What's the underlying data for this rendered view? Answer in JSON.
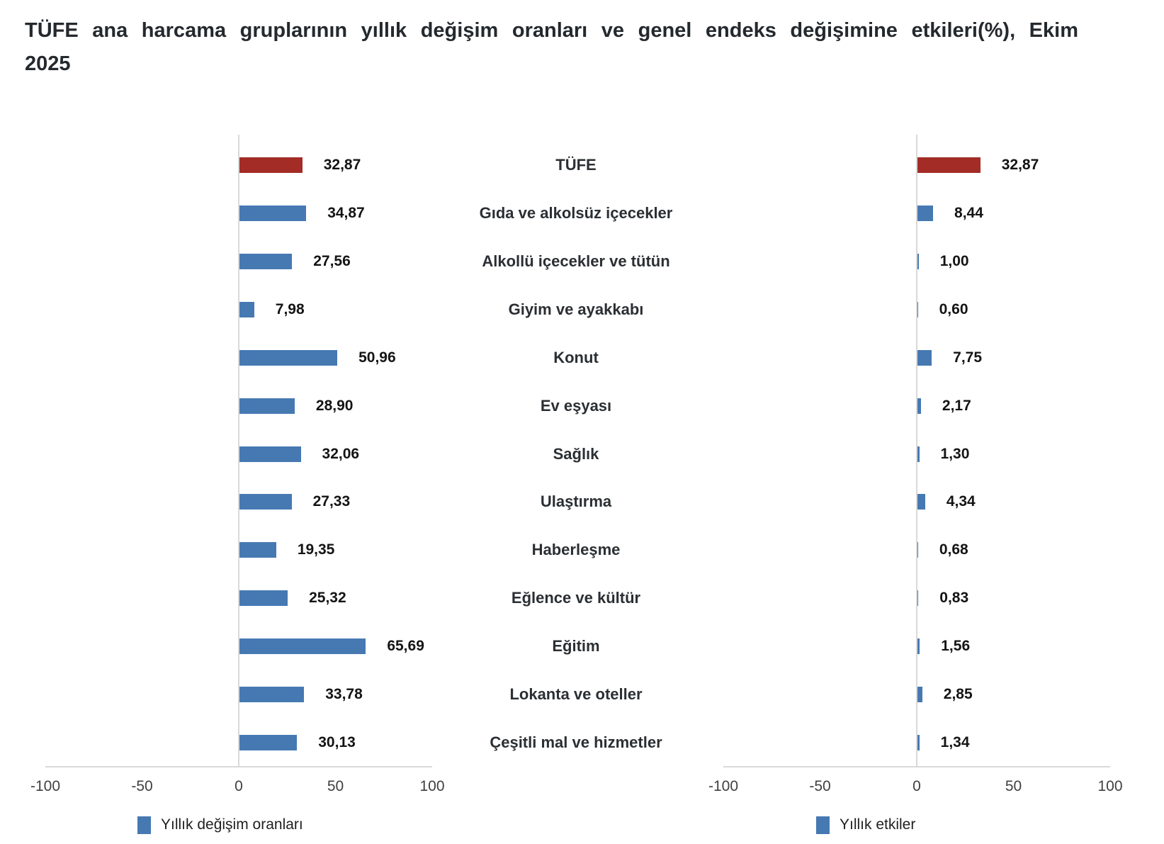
{
  "title": {
    "full": "TÜFE ana harcama gruplarının yıllık değişim oranları ve genel endeks değişimine etkileri(%), Ekim 2025",
    "line1": "TÜFE ana harcama gruplarının yıllık değişim oranları ve genel endeks değişimine etkileri(%), Ekim",
    "line2": "2025"
  },
  "chart_data": {
    "type": "bar",
    "orientation": "horizontal-tornado",
    "grid": "off",
    "categories": [
      "TÜFE",
      "Gıda ve alkolsüz içecekler",
      "Alkollü içecekler ve tütün",
      "Giyim ve ayakkabı",
      "Konut",
      "Ev eşyası",
      "Sağlık",
      "Ulaştırma",
      "Haberleşme",
      "Eğlence ve kültür",
      "Eğitim",
      "Lokanta ve oteller",
      "Çeşitli mal ve hizmetler"
    ],
    "series": [
      {
        "name": "Yıllık değişim oranları",
        "values": [
          32.87,
          34.87,
          27.56,
          7.98,
          50.96,
          28.9,
          32.06,
          27.33,
          19.35,
          25.32,
          65.69,
          33.78,
          30.13
        ],
        "labels": [
          "32,87",
          "34,87",
          "27,56",
          "7,98",
          "50,96",
          "28,90",
          "32,06",
          "27,33",
          "19,35",
          "25,32",
          "65,69",
          "33,78",
          "30,13"
        ]
      },
      {
        "name": "Yıllık etkiler",
        "values": [
          32.87,
          8.44,
          1.0,
          0.6,
          7.75,
          2.17,
          1.3,
          4.34,
          0.68,
          0.83,
          1.56,
          2.85,
          1.34
        ],
        "labels": [
          "32,87",
          "8,44",
          "1,00",
          "0,60",
          "7,75",
          "2,17",
          "1,30",
          "4,34",
          "0,68",
          "0,83",
          "1,56",
          "2,85",
          "1,34"
        ]
      }
    ],
    "axis_range": [
      -100,
      100
    ],
    "axis_ticks": [
      -100,
      -50,
      0,
      50,
      100
    ],
    "axis_tick_labels": [
      "-100",
      "-50",
      "0",
      "50",
      "100"
    ],
    "highlight_category": "TÜFE",
    "legend_position": "bottom",
    "colors": {
      "bar_blue": "#4679b2",
      "bar_red": "#a32c26",
      "axis_line": "#d9d9d9"
    },
    "legend": [
      {
        "label": "Yıllık değişim oranları",
        "color": "#4679b2"
      },
      {
        "label": "Yıllık etkiler",
        "color": "#4679b2"
      }
    ]
  }
}
